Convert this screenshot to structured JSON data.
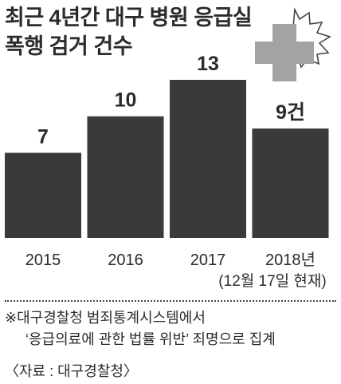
{
  "title": {
    "line1": "최근 4년간 대구 병원 응급실",
    "line2": "폭행 검거 건수"
  },
  "chart_data": {
    "type": "bar",
    "categories": [
      "2015",
      "2016",
      "2017",
      "2018년"
    ],
    "values": [
      7,
      10,
      13,
      9
    ],
    "value_labels": [
      "7",
      "10",
      "13",
      "9건"
    ],
    "category_subnote": "(12월 17일 현재)",
    "title": "최근 4년간 대구 병원 응급실 폭행 검거 건수",
    "xlabel": "",
    "ylabel": "",
    "ylim": [
      0,
      16
    ],
    "grid": false,
    "legend": "none",
    "bar_color": "#3a3a3a"
  },
  "icon": "medical-cross-icon",
  "colors": {
    "bar": "#3a3a3a",
    "cross": "#a3a3a3",
    "text": "#2b2b2b"
  },
  "notes": {
    "line1": "※대구경찰청 범죄통계시스템에서",
    "line2": "‘응급의료에 관한 법률 위반’ 죄명으로 집계"
  },
  "source": "〈자료 : 대구경찰청〉"
}
